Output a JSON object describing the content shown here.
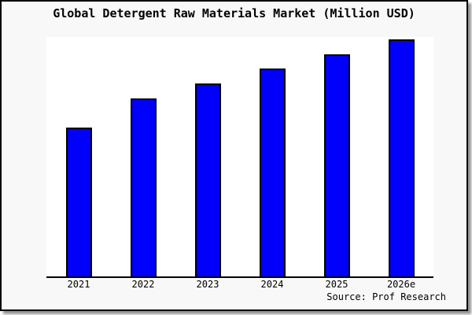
{
  "window": {
    "background_color": "#f8f8f8",
    "frame_border_color": "#000000",
    "plot_background_color": "#ffffff"
  },
  "chart_data": {
    "type": "bar",
    "title": "Global Detergent Raw Materials Market (Million USD)",
    "categories": [
      "2021",
      "2022",
      "2023",
      "2024",
      "2025",
      "2026e"
    ],
    "values_pct_of_plot_height": [
      62.2,
      74.3,
      80.6,
      86.8,
      92.8,
      99.0
    ],
    "xlabel": "",
    "ylabel": "",
    "y_axis_visible": false,
    "y_tick_labels": [],
    "grid": false,
    "legend": false,
    "bar_color": "#0000fb",
    "bar_border_color": "#000000",
    "axis_line_color": "#000000",
    "source_note": "Source: Prof Research"
  }
}
